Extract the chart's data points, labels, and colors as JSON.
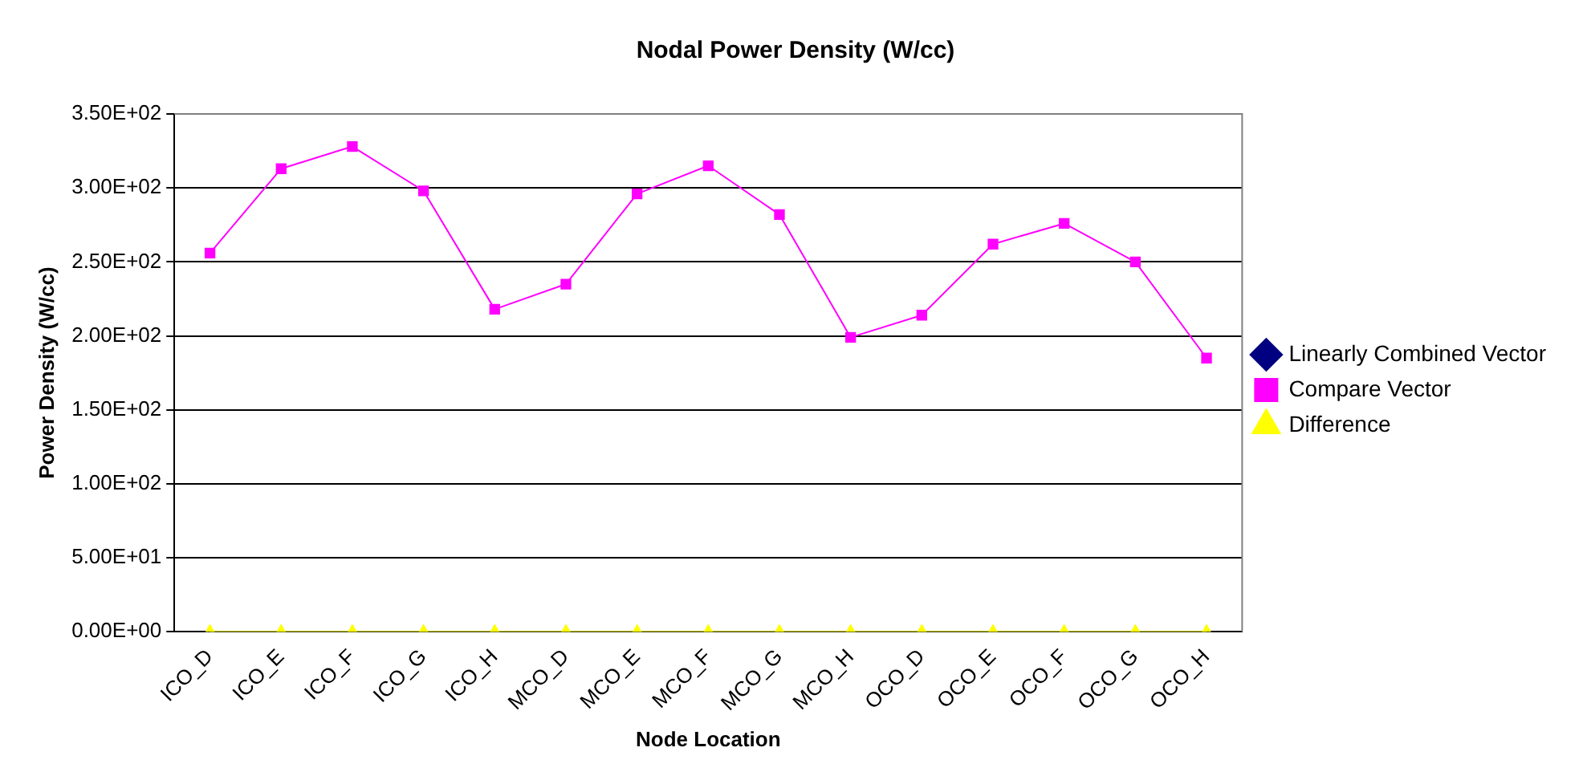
{
  "chart_data": {
    "type": "line",
    "title": "Nodal Power Density (W/cc)",
    "xlabel": "Node Location",
    "ylabel": "Power Density (W/cc)",
    "categories": [
      "ICO_D",
      "ICO_E",
      "ICO_F",
      "ICO_G",
      "ICO_H",
      "MCO_D",
      "MCO_E",
      "MCO_F",
      "MCO_G",
      "MCO_H",
      "OCO_D",
      "OCO_E",
      "OCO_F",
      "OCO_G",
      "OCO_H"
    ],
    "series": [
      {
        "name": "Linearly Combined Vector",
        "color": "#000080",
        "marker": "diamond",
        "values": [
          null,
          null,
          null,
          null,
          null,
          null,
          null,
          null,
          null,
          null,
          null,
          null,
          null,
          null,
          null
        ]
      },
      {
        "name": "Compare Vector",
        "color": "#ff00ff",
        "marker": "square",
        "values": [
          256,
          313,
          328,
          298,
          218,
          235,
          296,
          315,
          282,
          199,
          214,
          262,
          276,
          250,
          185
        ]
      },
      {
        "name": "Difference",
        "color": "#ffff00",
        "marker": "triangle",
        "values": [
          0,
          0,
          0,
          0,
          0,
          0,
          0,
          0,
          0,
          0,
          0,
          0,
          0,
          0,
          0
        ]
      }
    ],
    "ylim": [
      0,
      350
    ],
    "yticks": [
      {
        "value": 0,
        "label": "0.00E+00"
      },
      {
        "value": 50,
        "label": "5.00E+01"
      },
      {
        "value": 100,
        "label": "1.00E+02"
      },
      {
        "value": 150,
        "label": "1.50E+02"
      },
      {
        "value": 200,
        "label": "2.00E+02"
      },
      {
        "value": 250,
        "label": "2.50E+02"
      },
      {
        "value": 300,
        "label": "3.00E+02"
      },
      {
        "value": 350,
        "label": "3.50E+02"
      }
    ],
    "grid": "y",
    "legend": "right"
  }
}
